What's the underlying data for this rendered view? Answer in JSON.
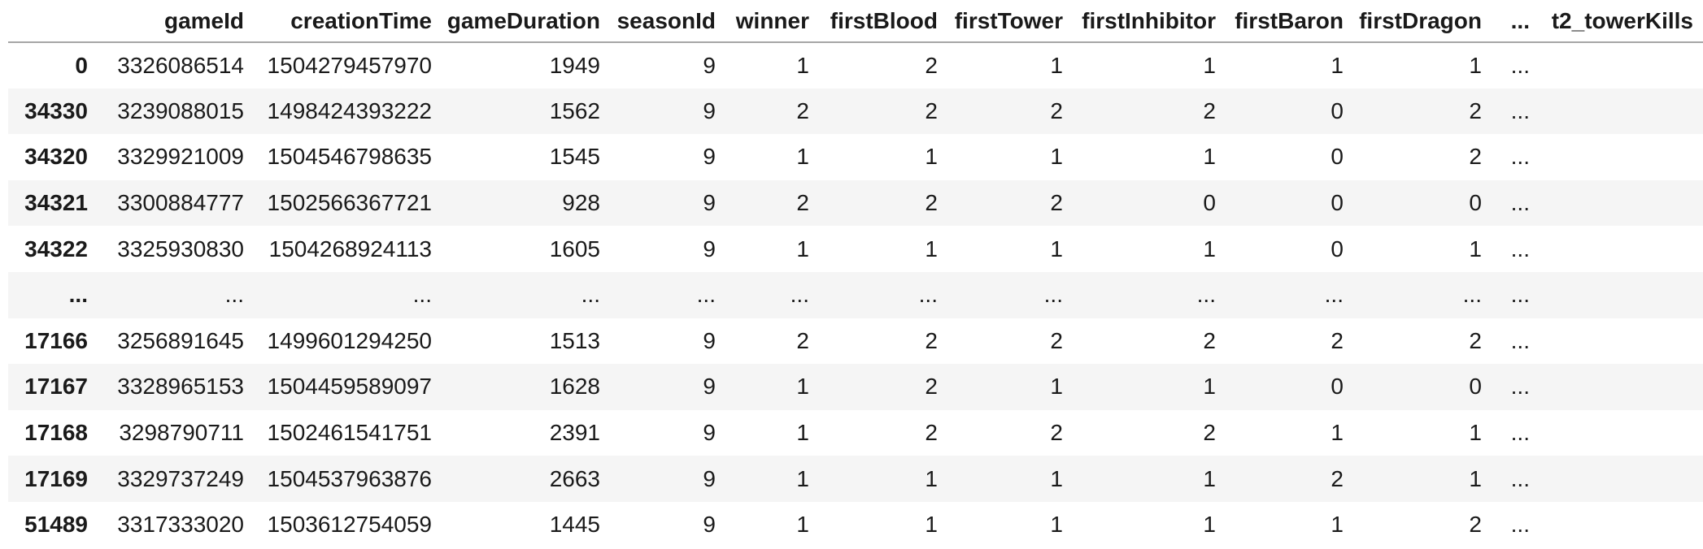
{
  "table": {
    "corner_label": "",
    "columns": [
      "gameId",
      "creationTime",
      "gameDuration",
      "seasonId",
      "winner",
      "firstBlood",
      "firstTower",
      "firstInhibitor",
      "firstBaron",
      "firstDragon",
      "...",
      "t2_towerKills"
    ],
    "rows": [
      {
        "index": "0",
        "cells": [
          "3326086514",
          "1504279457970",
          "1949",
          "9",
          "1",
          "2",
          "1",
          "1",
          "1",
          "1",
          "...",
          ""
        ]
      },
      {
        "index": "34330",
        "cells": [
          "3239088015",
          "1498424393222",
          "1562",
          "9",
          "2",
          "2",
          "2",
          "2",
          "0",
          "2",
          "...",
          ""
        ]
      },
      {
        "index": "34320",
        "cells": [
          "3329921009",
          "1504546798635",
          "1545",
          "9",
          "1",
          "1",
          "1",
          "1",
          "0",
          "2",
          "...",
          ""
        ]
      },
      {
        "index": "34321",
        "cells": [
          "3300884777",
          "1502566367721",
          "928",
          "9",
          "2",
          "2",
          "2",
          "0",
          "0",
          "0",
          "...",
          ""
        ]
      },
      {
        "index": "34322",
        "cells": [
          "3325930830",
          "1504268924113",
          "1605",
          "9",
          "1",
          "1",
          "1",
          "1",
          "0",
          "1",
          "...",
          ""
        ]
      },
      {
        "index": "...",
        "cells": [
          "...",
          "...",
          "...",
          "...",
          "...",
          "...",
          "...",
          "...",
          "...",
          "...",
          "...",
          ""
        ]
      },
      {
        "index": "17166",
        "cells": [
          "3256891645",
          "1499601294250",
          "1513",
          "9",
          "2",
          "2",
          "2",
          "2",
          "2",
          "2",
          "...",
          ""
        ]
      },
      {
        "index": "17167",
        "cells": [
          "3328965153",
          "1504459589097",
          "1628",
          "9",
          "1",
          "2",
          "1",
          "1",
          "0",
          "0",
          "...",
          ""
        ]
      },
      {
        "index": "17168",
        "cells": [
          "3298790711",
          "1502461541751",
          "2391",
          "9",
          "1",
          "2",
          "2",
          "2",
          "1",
          "1",
          "...",
          ""
        ]
      },
      {
        "index": "17169",
        "cells": [
          "3329737249",
          "1504537963876",
          "2663",
          "9",
          "1",
          "1",
          "1",
          "1",
          "2",
          "1",
          "...",
          ""
        ]
      },
      {
        "index": "51489",
        "cells": [
          "3317333020",
          "1503612754059",
          "1445",
          "9",
          "1",
          "1",
          "1",
          "1",
          "1",
          "2",
          "...",
          ""
        ]
      }
    ],
    "colors": {
      "background": "#ffffff",
      "stripe": "#f5f5f5",
      "header_border": "#a6a6a6",
      "text": "#1a1a1a"
    }
  }
}
